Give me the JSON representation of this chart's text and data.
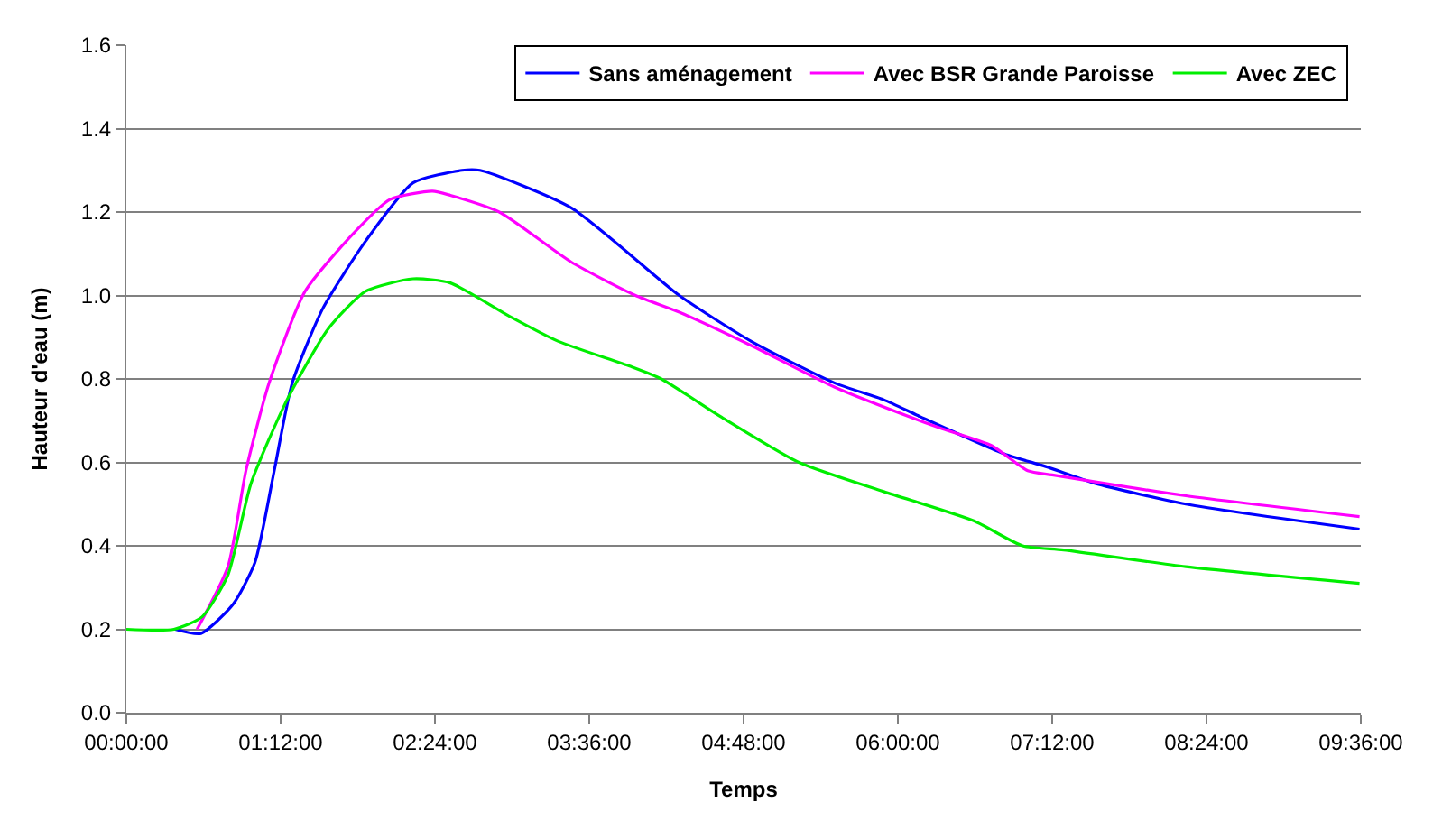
{
  "chart_data": {
    "type": "line",
    "xlabel": "Temps",
    "ylabel": "Hauteur d'eau (m)",
    "xlim": [
      0,
      9.6
    ],
    "xticks": [
      {
        "value": 0,
        "label": "00:00:00"
      },
      {
        "value": 1.2,
        "label": "01:12:00"
      },
      {
        "value": 2.4,
        "label": "02:24:00"
      },
      {
        "value": 3.6,
        "label": "03:36:00"
      },
      {
        "value": 4.8,
        "label": "04:48:00"
      },
      {
        "value": 6,
        "label": "06:00:00"
      },
      {
        "value": 7.2,
        "label": "07:12:00"
      },
      {
        "value": 8.4,
        "label": "08:24:00"
      },
      {
        "value": 9.6,
        "label": "09:36:00"
      }
    ],
    "ylim": [
      0,
      1.6
    ],
    "yticks": [
      {
        "value": 0,
        "label": "0.0"
      },
      {
        "value": 0.2,
        "label": "0.2"
      },
      {
        "value": 0.4,
        "label": "0.4"
      },
      {
        "value": 0.6,
        "label": "0.6"
      },
      {
        "value": 0.8,
        "label": "0.8"
      },
      {
        "value": 1.0,
        "label": "1.0"
      },
      {
        "value": 1.2,
        "label": "1.2"
      },
      {
        "value": 1.4,
        "label": "1.4"
      },
      {
        "value": 1.6,
        "label": "1.6"
      }
    ],
    "grid": "y",
    "legend": "top right",
    "marker": "none",
    "line_style": "solid",
    "series": [
      {
        "name": "Sans aménagement",
        "color": "#0000ff",
        "x": [
          0.38,
          0.58,
          0.83,
          1.0,
          1.15,
          1.29,
          1.53,
          1.86,
          2.23,
          2.61,
          2.75,
          3.46,
          4.3,
          4.86,
          5.51,
          5.89,
          6.17,
          6.83,
          7.15,
          7.53,
          8.24,
          9.59
        ],
        "values": [
          0.2,
          0.19,
          0.26,
          0.36,
          0.58,
          0.79,
          0.97,
          1.13,
          1.27,
          1.3,
          1.3,
          1.21,
          1.0,
          0.89,
          0.79,
          0.75,
          0.71,
          0.62,
          0.59,
          0.55,
          0.5,
          0.44
        ]
      },
      {
        "name": "Avec BSR Grande Paroisse",
        "color": "#ff00ff",
        "x": [
          0.55,
          0.79,
          0.93,
          1.11,
          1.39,
          1.77,
          2.05,
          2.38,
          2.52,
          2.9,
          3.46,
          3.96,
          4.3,
          4.86,
          5.51,
          6.17,
          6.35,
          6.73,
          7.01,
          7.2,
          8.24,
          9.59
        ],
        "values": [
          0.2,
          0.35,
          0.58,
          0.79,
          1.01,
          1.15,
          1.23,
          1.25,
          1.24,
          1.2,
          1.08,
          1.0,
          0.96,
          0.88,
          0.78,
          0.7,
          0.68,
          0.64,
          0.58,
          0.57,
          0.52,
          0.47
        ]
      },
      {
        "name": "Avec ZEC",
        "color": "#00ee00",
        "x": [
          0,
          0.37,
          0.59,
          0.79,
          0.97,
          1.25,
          1.57,
          1.86,
          2.23,
          2.52,
          2.98,
          3.36,
          3.92,
          4.16,
          4.62,
          5.23,
          5.89,
          6.59,
          6.97,
          7.29,
          8.24,
          9.59
        ],
        "values": [
          0.2,
          0.2,
          0.23,
          0.33,
          0.55,
          0.75,
          0.92,
          1.01,
          1.04,
          1.03,
          0.95,
          0.89,
          0.83,
          0.8,
          0.71,
          0.6,
          0.53,
          0.46,
          0.4,
          0.39,
          0.35,
          0.31
        ]
      }
    ]
  }
}
